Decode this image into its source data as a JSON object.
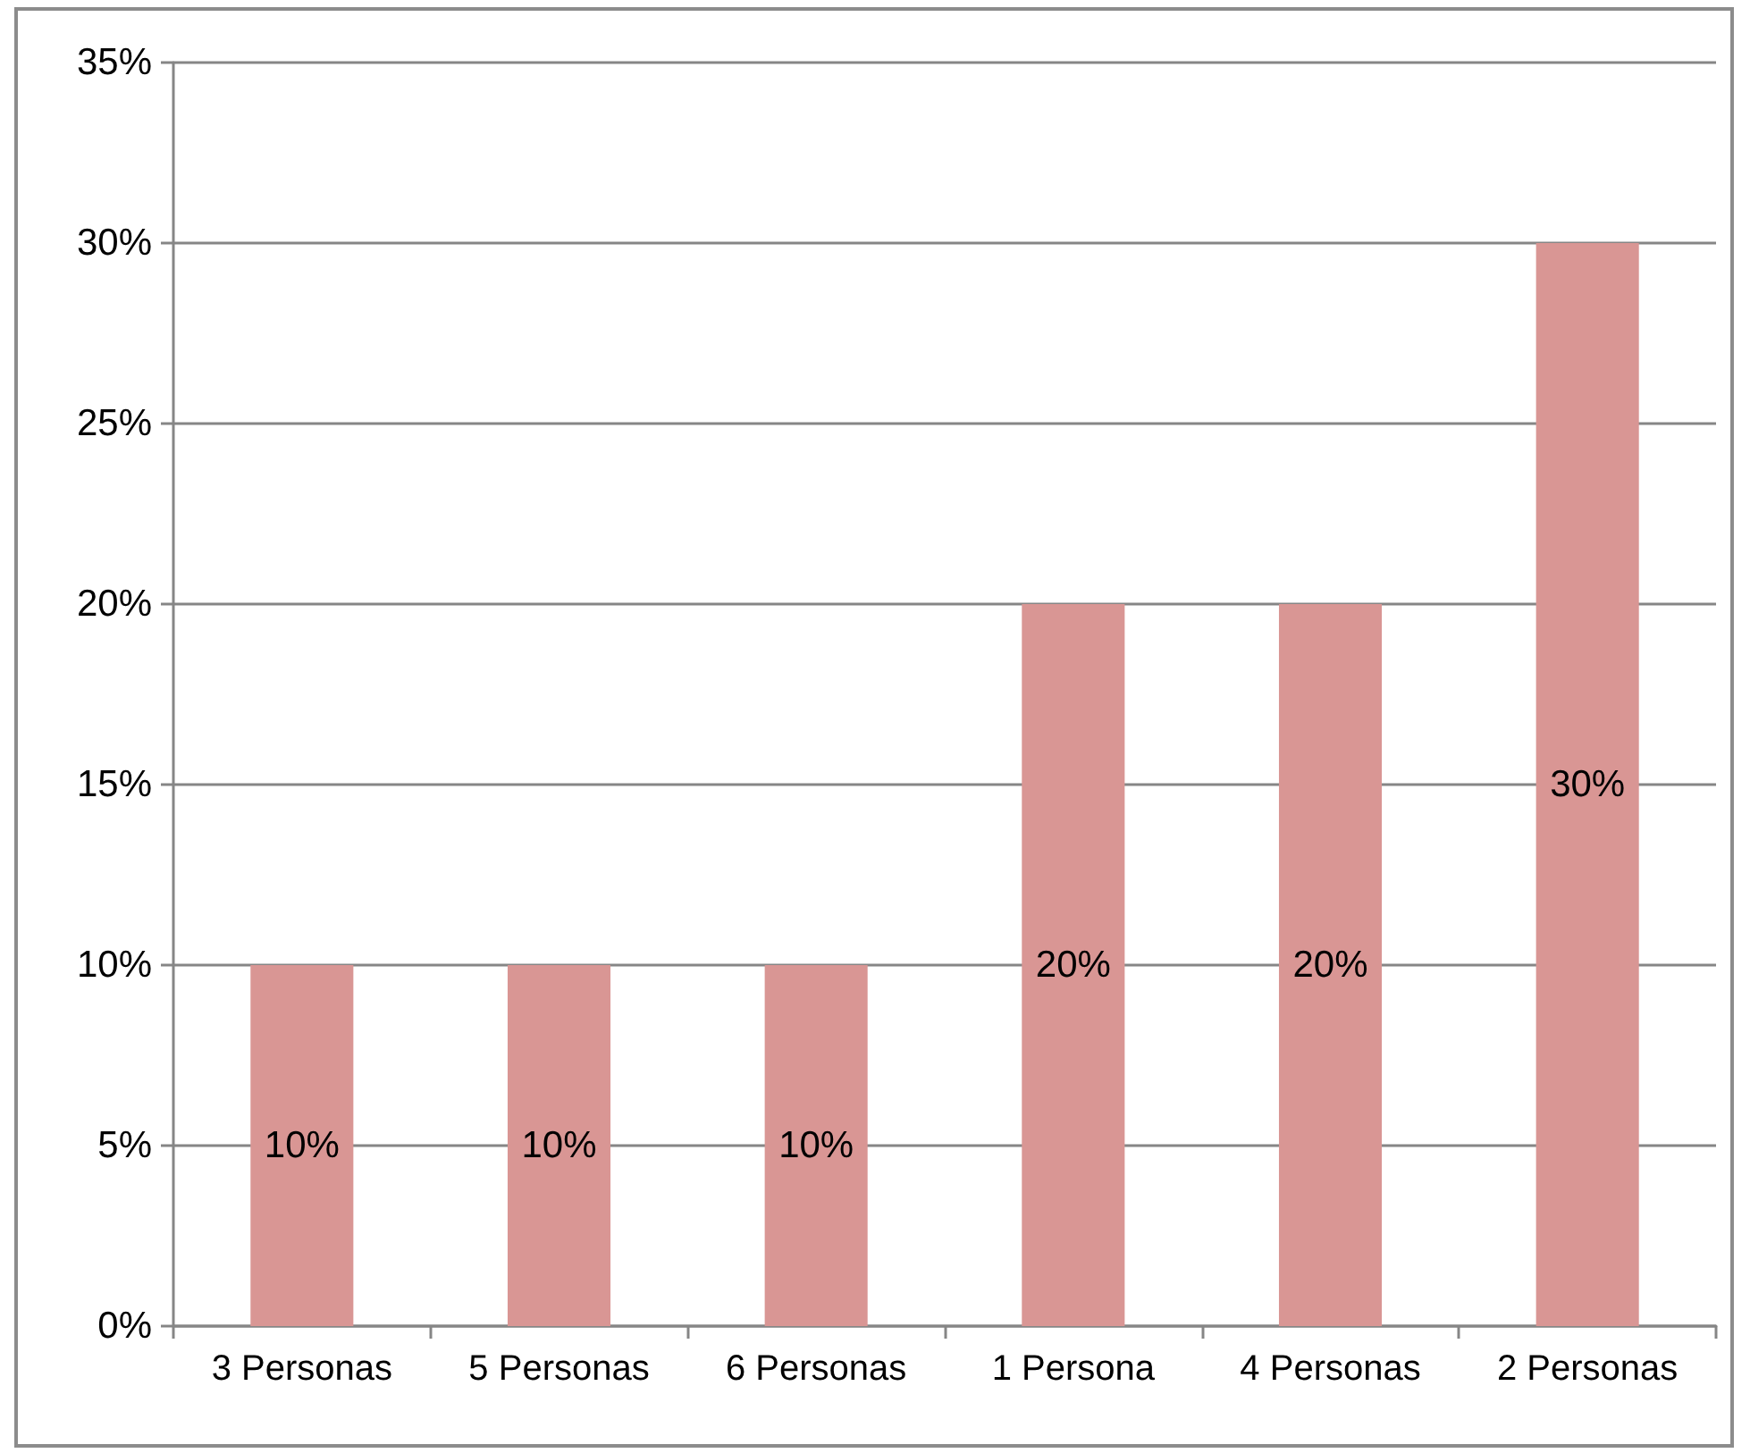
{
  "chart_data": {
    "type": "bar",
    "categories": [
      "3 Personas",
      "5 Personas",
      "6 Personas",
      "1 Persona",
      "4 Personas",
      "2 Personas"
    ],
    "values": [
      10,
      10,
      10,
      20,
      20,
      30
    ],
    "color": "#d99694",
    "value_labels": [
      "10%",
      "10%",
      "10%",
      "20%",
      "20%",
      "30%"
    ],
    "ylim": [
      0,
      35
    ],
    "yticks": [
      {
        "value": 0,
        "label": "0%"
      },
      {
        "value": 5,
        "label": "5%"
      },
      {
        "value": 10,
        "label": "10%"
      },
      {
        "value": 15,
        "label": "15%"
      },
      {
        "value": 20,
        "label": "20%"
      },
      {
        "value": 25,
        "label": "25%"
      },
      {
        "value": 30,
        "label": "30%"
      },
      {
        "value": 35,
        "label": "35%"
      }
    ],
    "grid": "y"
  }
}
